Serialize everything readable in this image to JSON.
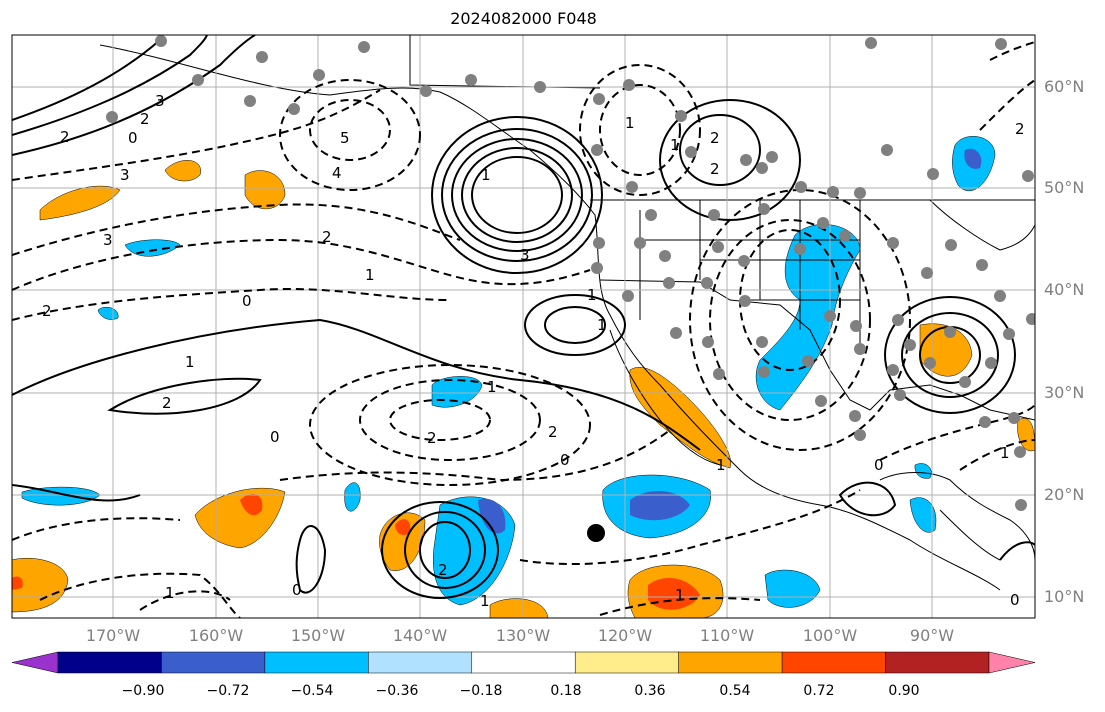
{
  "title": "2024082000 F048",
  "lat_labels": [
    "60°N",
    "50°N",
    "40°N",
    "30°N",
    "20°N",
    "10°N"
  ],
  "lon_labels": [
    "170°W",
    "160°W",
    "150°W",
    "140°W",
    "130°W",
    "120°W",
    "110°W",
    "100°W",
    "90°W"
  ],
  "contour_labels": [
    "3",
    "2",
    "0",
    "2",
    "3",
    "5",
    "4",
    "3",
    "2",
    "1",
    "2",
    "0",
    "2",
    "1",
    "2",
    "0",
    "1",
    "1",
    "2",
    "3",
    "1",
    "1",
    "2",
    "1",
    "1",
    "2",
    "1",
    "1",
    "0",
    "0",
    "1",
    "1",
    "0",
    "2",
    "1",
    "2",
    "0"
  ],
  "colorbar": {
    "ticks": [
      "−0.90",
      "−0.72",
      "−0.54",
      "−0.36",
      "−0.18",
      "0.18",
      "0.36",
      "0.54",
      "0.72",
      "0.90"
    ],
    "colors": [
      "#9a32cd",
      "#00008b",
      "#3a5fcd",
      "#00bfff",
      "#b0e2ff",
      "#ffffff",
      "#ffec8b",
      "#ffa500",
      "#ff4500",
      "#b22222",
      "#ff82ab"
    ]
  },
  "map_colors": {
    "land_border": "#000000",
    "grid": "#b0b0b0",
    "station_dot": "#808080"
  }
}
